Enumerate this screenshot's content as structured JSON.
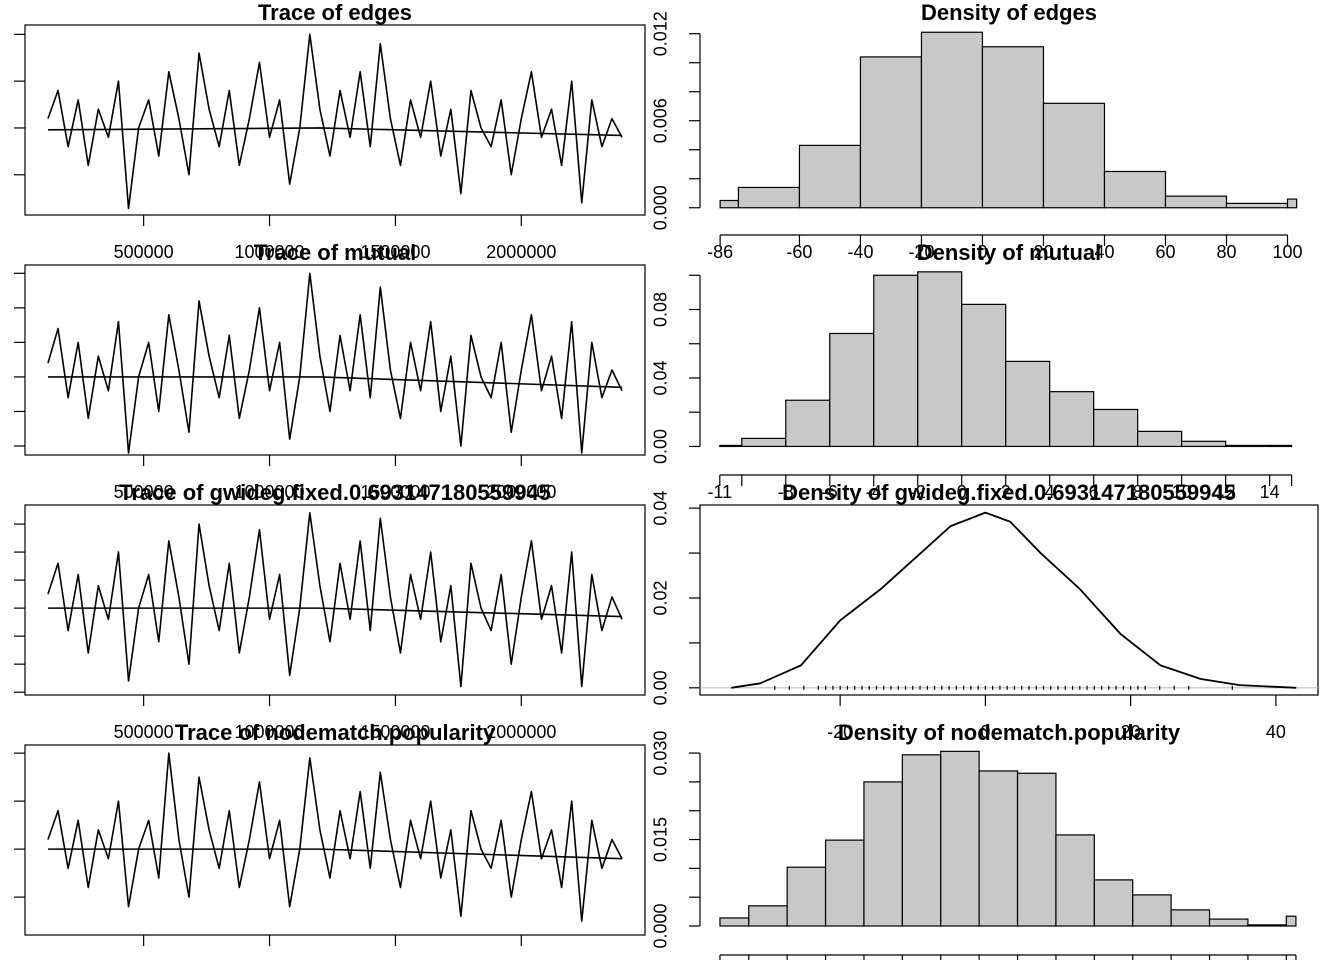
{
  "chart_data": [
    {
      "type": "line",
      "title": "Trace of edges",
      "x": [
        120000,
        160000,
        200000,
        240000,
        280000,
        320000,
        360000,
        400000,
        440000,
        480000,
        520000,
        560000,
        600000,
        640000,
        680000,
        720000,
        760000,
        800000,
        840000,
        880000,
        920000,
        960000,
        1000000,
        1040000,
        1080000,
        1120000,
        1160000,
        1200000,
        1240000,
        1280000,
        1320000,
        1360000,
        1400000,
        1440000,
        1480000,
        1520000,
        1560000,
        1600000,
        1640000,
        1680000,
        1720000,
        1760000,
        1800000,
        1840000,
        1880000,
        1920000,
        1960000,
        2000000,
        2040000,
        2080000,
        2120000,
        2160000,
        2200000,
        2240000,
        2280000,
        2320000,
        2360000,
        2400000
      ],
      "series": [
        {
          "color": "#000000",
          "values": [
            10,
            40,
            -20,
            30,
            -40,
            20,
            -10,
            50,
            -86,
            0,
            30,
            -30,
            60,
            10,
            -50,
            80,
            20,
            -20,
            40,
            -40,
            10,
            70,
            -10,
            30,
            -60,
            0,
            100,
            20,
            -30,
            40,
            -10,
            60,
            -20,
            90,
            10,
            -40,
            30,
            -10,
            50,
            -30,
            20,
            -70,
            40,
            0,
            -20,
            30,
            -50,
            10,
            60,
            -10,
            20,
            -40,
            50,
            -80,
            30,
            -20,
            10,
            -10
          ]
        }
      ],
      "trend": {
        "x": [
          120000,
          1200000,
          2400000
        ],
        "values": [
          -2,
          0,
          -8
        ]
      },
      "xlim": [
        28800,
        2491200
      ],
      "ylim": [
        -93,
        110
      ],
      "xticks": [
        500000,
        1000000,
        1500000,
        2000000
      ],
      "yticks": [
        -50,
        0,
        50,
        100
      ],
      "xtick_labels": true,
      "ytick_labels": false,
      "box": true
    },
    {
      "type": "histogram",
      "title": "Density of edges",
      "bins": [
        -86,
        -80,
        -60,
        -40,
        -20,
        0,
        20,
        40,
        60,
        80,
        100,
        103
      ],
      "values": [
        0.0005,
        0.0014,
        0.0043,
        0.0104,
        0.0121,
        0.0111,
        0.0072,
        0.0025,
        0.0008,
        0.0003,
        0.0006
      ],
      "color": "#c8c8c8",
      "xlim": [
        -92.6,
        110
      ],
      "ylim": [
        -0.0005,
        0.0126
      ],
      "xticks": [
        -86,
        -60,
        -40,
        -20,
        0,
        20,
        40,
        60,
        80,
        100
      ],
      "yticks": [
        {
          "value": 0,
          "label": "0.000"
        },
        0.006,
        0.012
      ],
      "yminorticks": [
        0.002,
        0.004,
        0.008,
        0.01
      ],
      "xtick_labels": true,
      "box": false
    },
    {
      "type": "line",
      "title": "Trace of mutual",
      "x": [
        120000,
        160000,
        200000,
        240000,
        280000,
        320000,
        360000,
        400000,
        440000,
        480000,
        520000,
        560000,
        600000,
        640000,
        680000,
        720000,
        760000,
        800000,
        840000,
        880000,
        920000,
        960000,
        1000000,
        1040000,
        1080000,
        1120000,
        1160000,
        1200000,
        1240000,
        1280000,
        1320000,
        1360000,
        1400000,
        1440000,
        1480000,
        1520000,
        1560000,
        1600000,
        1640000,
        1680000,
        1720000,
        1760000,
        1800000,
        1840000,
        1880000,
        1920000,
        1960000,
        2000000,
        2040000,
        2080000,
        2120000,
        2160000,
        2200000,
        2240000,
        2280000,
        2320000,
        2360000,
        2400000
      ],
      "series": [
        {
          "color": "#000000",
          "values": [
            2,
            7,
            -3,
            5,
            -6,
            3,
            -2,
            8,
            -11,
            0,
            5,
            -5,
            9,
            1,
            -8,
            11,
            3,
            -3,
            6,
            -6,
            1,
            10,
            -2,
            5,
            -9,
            0,
            15,
            3,
            -5,
            6,
            -2,
            9,
            -3,
            13,
            1,
            -6,
            5,
            -2,
            8,
            -5,
            3,
            -10,
            6,
            0,
            -3,
            5,
            -8,
            1,
            9,
            -2,
            3,
            -6,
            8,
            -11,
            5,
            -3,
            1,
            -2
          ]
        }
      ],
      "trend": {
        "x": [
          120000,
          1200000,
          2400000
        ],
        "values": [
          0,
          0,
          -1.5
        ]
      },
      "xlim": [
        28800,
        2491200
      ],
      "ylim": [
        -11.3,
        16.2
      ],
      "xticks": [
        500000,
        1000000,
        1500000,
        2000000
      ],
      "yticks": [
        -10,
        -5,
        0,
        5,
        10,
        15
      ],
      "xtick_labels": true,
      "ytick_labels": false,
      "box": true
    },
    {
      "type": "histogram",
      "title": "Density of mutual",
      "bins": [
        -11,
        -10,
        -8,
        -6,
        -4,
        -2,
        0,
        2,
        4,
        6,
        8,
        10,
        12,
        14,
        15
      ],
      "values": [
        0.0006,
        0.0047,
        0.027,
        0.066,
        0.1,
        0.102,
        0.083,
        0.0497,
        0.032,
        0.0216,
        0.0088,
        0.003,
        0.0006,
        0.0006
      ],
      "color": "#c8c8c8",
      "xlim": [
        -11.9,
        16.2
      ],
      "ylim": [
        -0.005,
        0.106
      ],
      "xticks": [
        -11,
        -8,
        -6,
        -4,
        -2,
        0,
        2,
        4,
        6,
        8,
        10,
        12,
        14
      ],
      "xminorticks": [
        -10,
        15
      ],
      "yticks": [
        {
          "value": 0,
          "label": "0.00"
        },
        0.04,
        0.08
      ],
      "yminorticks": [
        0.02,
        0.06,
        0.1
      ],
      "xtick_labels": true,
      "box": false
    },
    {
      "type": "line",
      "title": "Trace of gwideg.fixed.0.693147180559945",
      "x": [
        120000,
        160000,
        200000,
        240000,
        280000,
        320000,
        360000,
        400000,
        440000,
        480000,
        520000,
        560000,
        600000,
        640000,
        680000,
        720000,
        760000,
        800000,
        840000,
        880000,
        920000,
        960000,
        1000000,
        1040000,
        1080000,
        1120000,
        1160000,
        1200000,
        1240000,
        1280000,
        1320000,
        1360000,
        1400000,
        1440000,
        1480000,
        1520000,
        1560000,
        1600000,
        1640000,
        1680000,
        1720000,
        1760000,
        1800000,
        1840000,
        1880000,
        1920000,
        1960000,
        2000000,
        2040000,
        2080000,
        2120000,
        2160000,
        2200000,
        2240000,
        2280000,
        2320000,
        2360000,
        2400000
      ],
      "series": [
        {
          "color": "#000000",
          "values": [
            5,
            16,
            -8,
            12,
            -16,
            8,
            -4,
            20,
            -26,
            0,
            12,
            -12,
            24,
            4,
            -20,
            30,
            8,
            -8,
            16,
            -16,
            4,
            28,
            -4,
            12,
            -24,
            0,
            34,
            8,
            -12,
            16,
            -4,
            24,
            -8,
            32,
            4,
            -16,
            12,
            -4,
            20,
            -12,
            8,
            -28,
            16,
            0,
            -8,
            12,
            -20,
            4,
            24,
            -4,
            8,
            -16,
            20,
            -28,
            12,
            -8,
            4,
            -4
          ]
        }
      ],
      "trend": {
        "x": [
          120000,
          1200000,
          2400000
        ],
        "values": [
          0,
          0,
          -3
        ]
      },
      "xlim": [
        28800,
        2491200
      ],
      "ylim": [
        -31,
        36.8
      ],
      "xticks": [
        500000,
        1000000,
        1500000,
        2000000
      ],
      "yticks": [
        -30,
        -20,
        -10,
        0,
        10,
        20,
        30
      ],
      "xtick_labels": true,
      "ytick_labels": false,
      "box": true
    },
    {
      "type": "density",
      "title": "Density of gwideg.fixed.0.693147180559945",
      "x": [
        -35,
        -31,
        -25.4,
        -20,
        -14.4,
        -8.9,
        -4.8,
        0,
        3.4,
        7.6,
        13,
        18.6,
        24.1,
        29.6,
        35,
        42.8
      ],
      "values": [
        0,
        0.001,
        0.005,
        0.015,
        0.022,
        0.03,
        0.036,
        0.039,
        0.037,
        0.03,
        0.022,
        0.012,
        0.005,
        0.002,
        0.0006,
        0
      ],
      "rug": [
        -29,
        -27,
        -25,
        -23,
        -22,
        -21,
        -20,
        -19,
        -18,
        -17,
        -16,
        -15,
        -14,
        -13,
        -12,
        -11,
        -10,
        -9,
        -8,
        -7,
        -6,
        -5,
        -4,
        -3,
        -2,
        -1,
        0,
        1,
        2,
        3,
        4,
        5,
        6,
        7,
        8,
        9,
        10,
        11,
        12,
        13,
        14,
        15,
        16,
        17,
        18,
        19,
        20,
        21,
        22,
        24,
        26,
        28,
        34
      ],
      "color": "#000000",
      "zero_line_color": "#bebebe",
      "xlim": [
        -39.3,
        45.8
      ],
      "ylim": [
        -0.0016,
        0.0407
      ],
      "xticks": [
        -20,
        0,
        20,
        40
      ],
      "yticks": [
        {
          "value": 0,
          "label": "0.00"
        },
        0.02,
        0.04
      ],
      "yminorticks": [
        0.01,
        0.03
      ],
      "xtick_labels": true,
      "box": true
    },
    {
      "type": "line",
      "title": "Trace of nodematch.popularity",
      "x": [
        120000,
        160000,
        200000,
        240000,
        280000,
        320000,
        360000,
        400000,
        440000,
        480000,
        520000,
        560000,
        600000,
        640000,
        680000,
        720000,
        760000,
        800000,
        840000,
        880000,
        920000,
        960000,
        1000000,
        1040000,
        1080000,
        1120000,
        1160000,
        1200000,
        1240000,
        1280000,
        1320000,
        1360000,
        1400000,
        1440000,
        1480000,
        1520000,
        1560000,
        1600000,
        1640000,
        1680000,
        1720000,
        1760000,
        1800000,
        1840000,
        1880000,
        1920000,
        1960000,
        2000000,
        2040000,
        2080000,
        2120000,
        2160000,
        2200000,
        2240000,
        2280000,
        2320000,
        2360000,
        2400000
      ],
      "series": [
        {
          "color": "#000000",
          "values": [
            2,
            8,
            -4,
            6,
            -8,
            4,
            -2,
            10,
            -12,
            0,
            6,
            -6,
            20,
            2,
            -10,
            15,
            4,
            -4,
            8,
            -8,
            2,
            14,
            -2,
            6,
            -12,
            0,
            19,
            4,
            -6,
            8,
            -2,
            12,
            -4,
            16,
            2,
            -8,
            6,
            -2,
            10,
            -6,
            4,
            -14,
            8,
            0,
            -4,
            6,
            -10,
            2,
            12,
            -2,
            4,
            -8,
            10,
            -15,
            6,
            -4,
            2,
            -2
          ]
        }
      ],
      "trend": {
        "x": [
          120000,
          1200000,
          2400000
        ],
        "values": [
          0,
          0,
          -2
        ]
      },
      "xlim": [
        28800,
        2491200
      ],
      "ylim": [
        -17.9,
        21.7
      ],
      "xticks": [
        500000,
        1000000,
        1500000,
        2000000
      ],
      "yticks": [
        -10,
        0,
        10,
        20
      ],
      "xtick_labels": false,
      "ytick_labels": false,
      "box": true
    },
    {
      "type": "histogram",
      "title": "Density of nodematch.popularity",
      "bins": [
        -14,
        -12.5,
        -10.5,
        -8.5,
        -6.5,
        -4.5,
        -2.5,
        -0.5,
        1.5,
        3.5,
        5.5,
        7.5,
        9.5,
        11.5,
        13.5,
        15.5,
        16
      ],
      "values": [
        0.0014,
        0.0035,
        0.0102,
        0.0149,
        0.025,
        0.0297,
        0.0303,
        0.0269,
        0.0265,
        0.0158,
        0.008,
        0.0054,
        0.0028,
        0.0012,
        0.0002,
        0.0017
      ],
      "color": "#c8c8c8",
      "xlim": [
        -15.04,
        17.15
      ],
      "ylim": [
        -0.00156,
        0.0314
      ],
      "xticks": [
        -14,
        -12.5,
        -10.5,
        -8.5,
        -6.5,
        -4.5,
        -2.5,
        -0.5,
        1.5,
        3.5,
        5.5,
        7.5,
        9.5,
        11.5,
        13.5,
        15.5,
        16
      ],
      "yticks": [
        {
          "value": 0,
          "label": "0.000"
        },
        0.015,
        {
          "value": 0.03,
          "label": "0.030"
        }
      ],
      "yminorticks": [
        0.005,
        0.01,
        0.02,
        0.025
      ],
      "xtick_labels": false,
      "box": false
    }
  ]
}
